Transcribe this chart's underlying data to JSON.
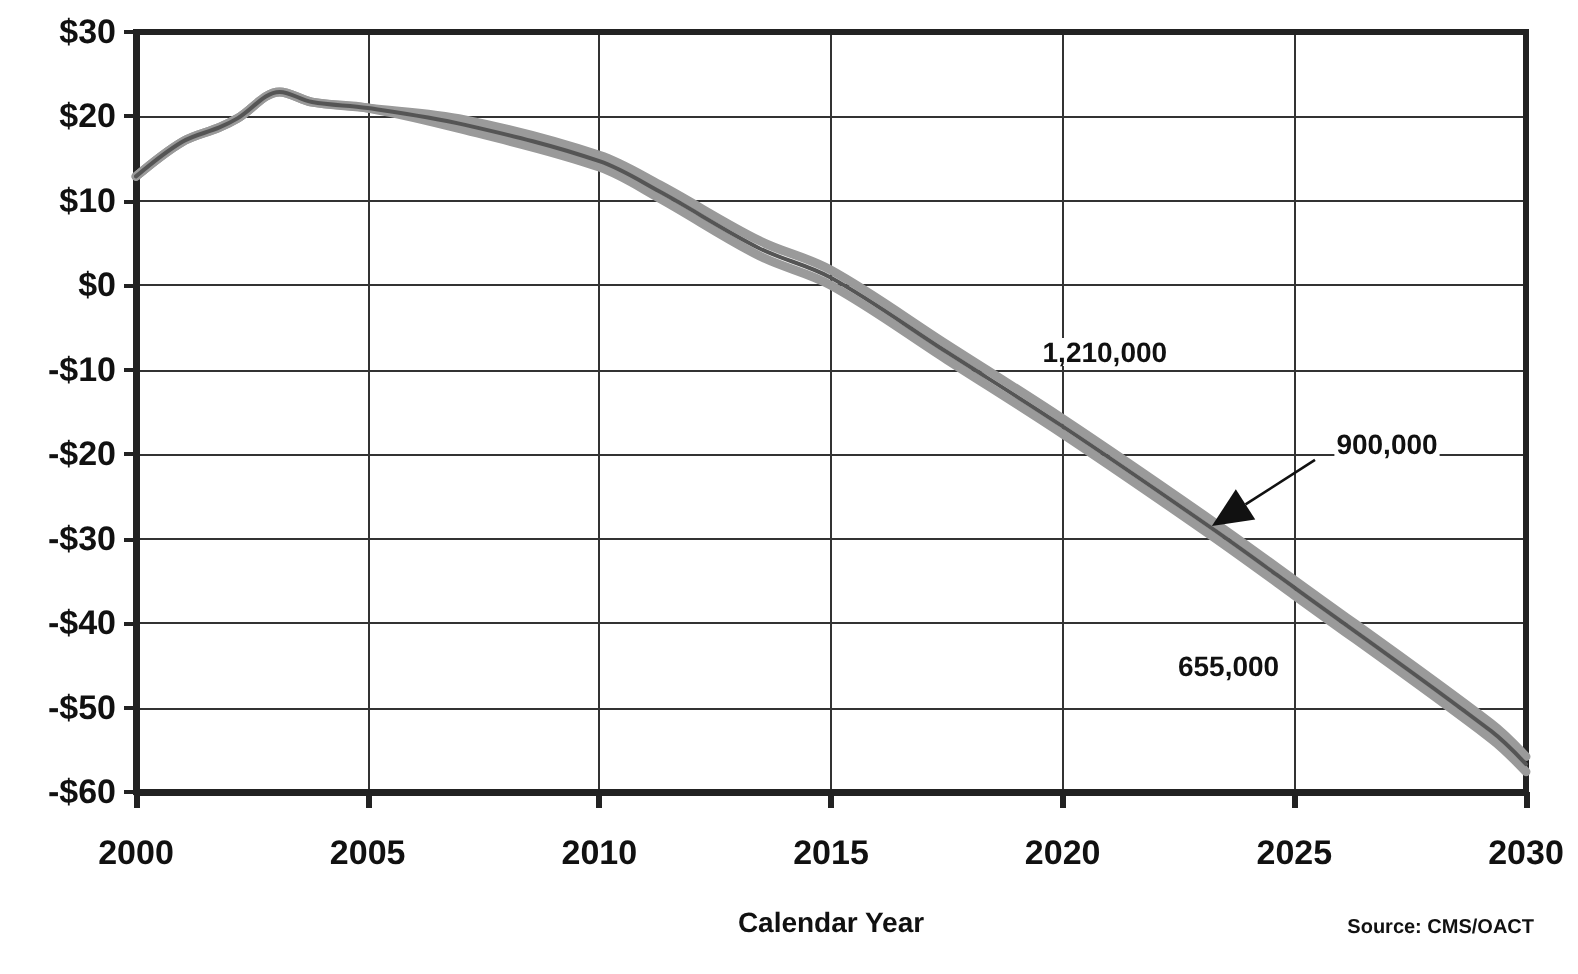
{
  "chart_data": {
    "type": "line",
    "xlabel": "Calendar Year",
    "x": [
      2000,
      2001,
      2001.8,
      2002.2,
      2003.1,
      2003.8,
      2005,
      2007.1,
      2010,
      2011.3,
      2013.45,
      2015,
      2017.5,
      2020,
      2023.2,
      2025,
      2029.25,
      2030
    ],
    "series": [
      {
        "color": "#9a9a9a",
        "values": [
          12.9,
          17.0,
          18.7,
          19.8,
          22.9,
          21.7,
          21.0,
          19.6,
          15.4,
          11.9,
          5.3,
          1.8,
          -7.0,
          -15.8,
          -27.8,
          -34.9,
          -51.9,
          -55.8
        ]
      },
      {
        "color": "#9a9a9a",
        "values": [
          12.9,
          17.0,
          18.7,
          19.8,
          22.9,
          21.7,
          21.0,
          18.4,
          14.0,
          10.3,
          3.5,
          0.0,
          -8.8,
          -17.6,
          -29.6,
          -36.7,
          -53.7,
          -57.6
        ]
      },
      {
        "color": "#555555",
        "values": [
          12.9,
          17.0,
          18.7,
          19.8,
          22.9,
          21.7,
          21.0,
          19.0,
          14.7,
          11.1,
          4.4,
          0.9,
          -7.9,
          -16.7,
          -28.7,
          -35.8,
          -52.8,
          -56.7
        ]
      }
    ],
    "xlim": [
      2000,
      2030
    ],
    "xticks": [
      2000,
      2005,
      2010,
      2015,
      2020,
      2025,
      2030
    ],
    "ylim": [
      -60,
      30
    ],
    "yticks": [
      {
        "value": -60,
        "label": "-$60"
      },
      {
        "value": -50,
        "label": "-$50"
      },
      {
        "value": -40,
        "label": "-$40"
      },
      {
        "value": -30,
        "label": "-$30"
      },
      {
        "value": -20,
        "label": "-$20"
      },
      {
        "value": -10,
        "label": "-$10"
      },
      {
        "value": 0,
        "label": "$0"
      },
      {
        "value": 10,
        "label": "$10"
      },
      {
        "value": 20,
        "label": "$20"
      },
      {
        "value": 30,
        "label": "$30"
      }
    ],
    "annotations": [
      "1,210,000",
      "900,000",
      "655,000",
      "Source: CMS/OACT"
    ],
    "grid": true,
    "marker": "none",
    "line_style": "solid"
  }
}
